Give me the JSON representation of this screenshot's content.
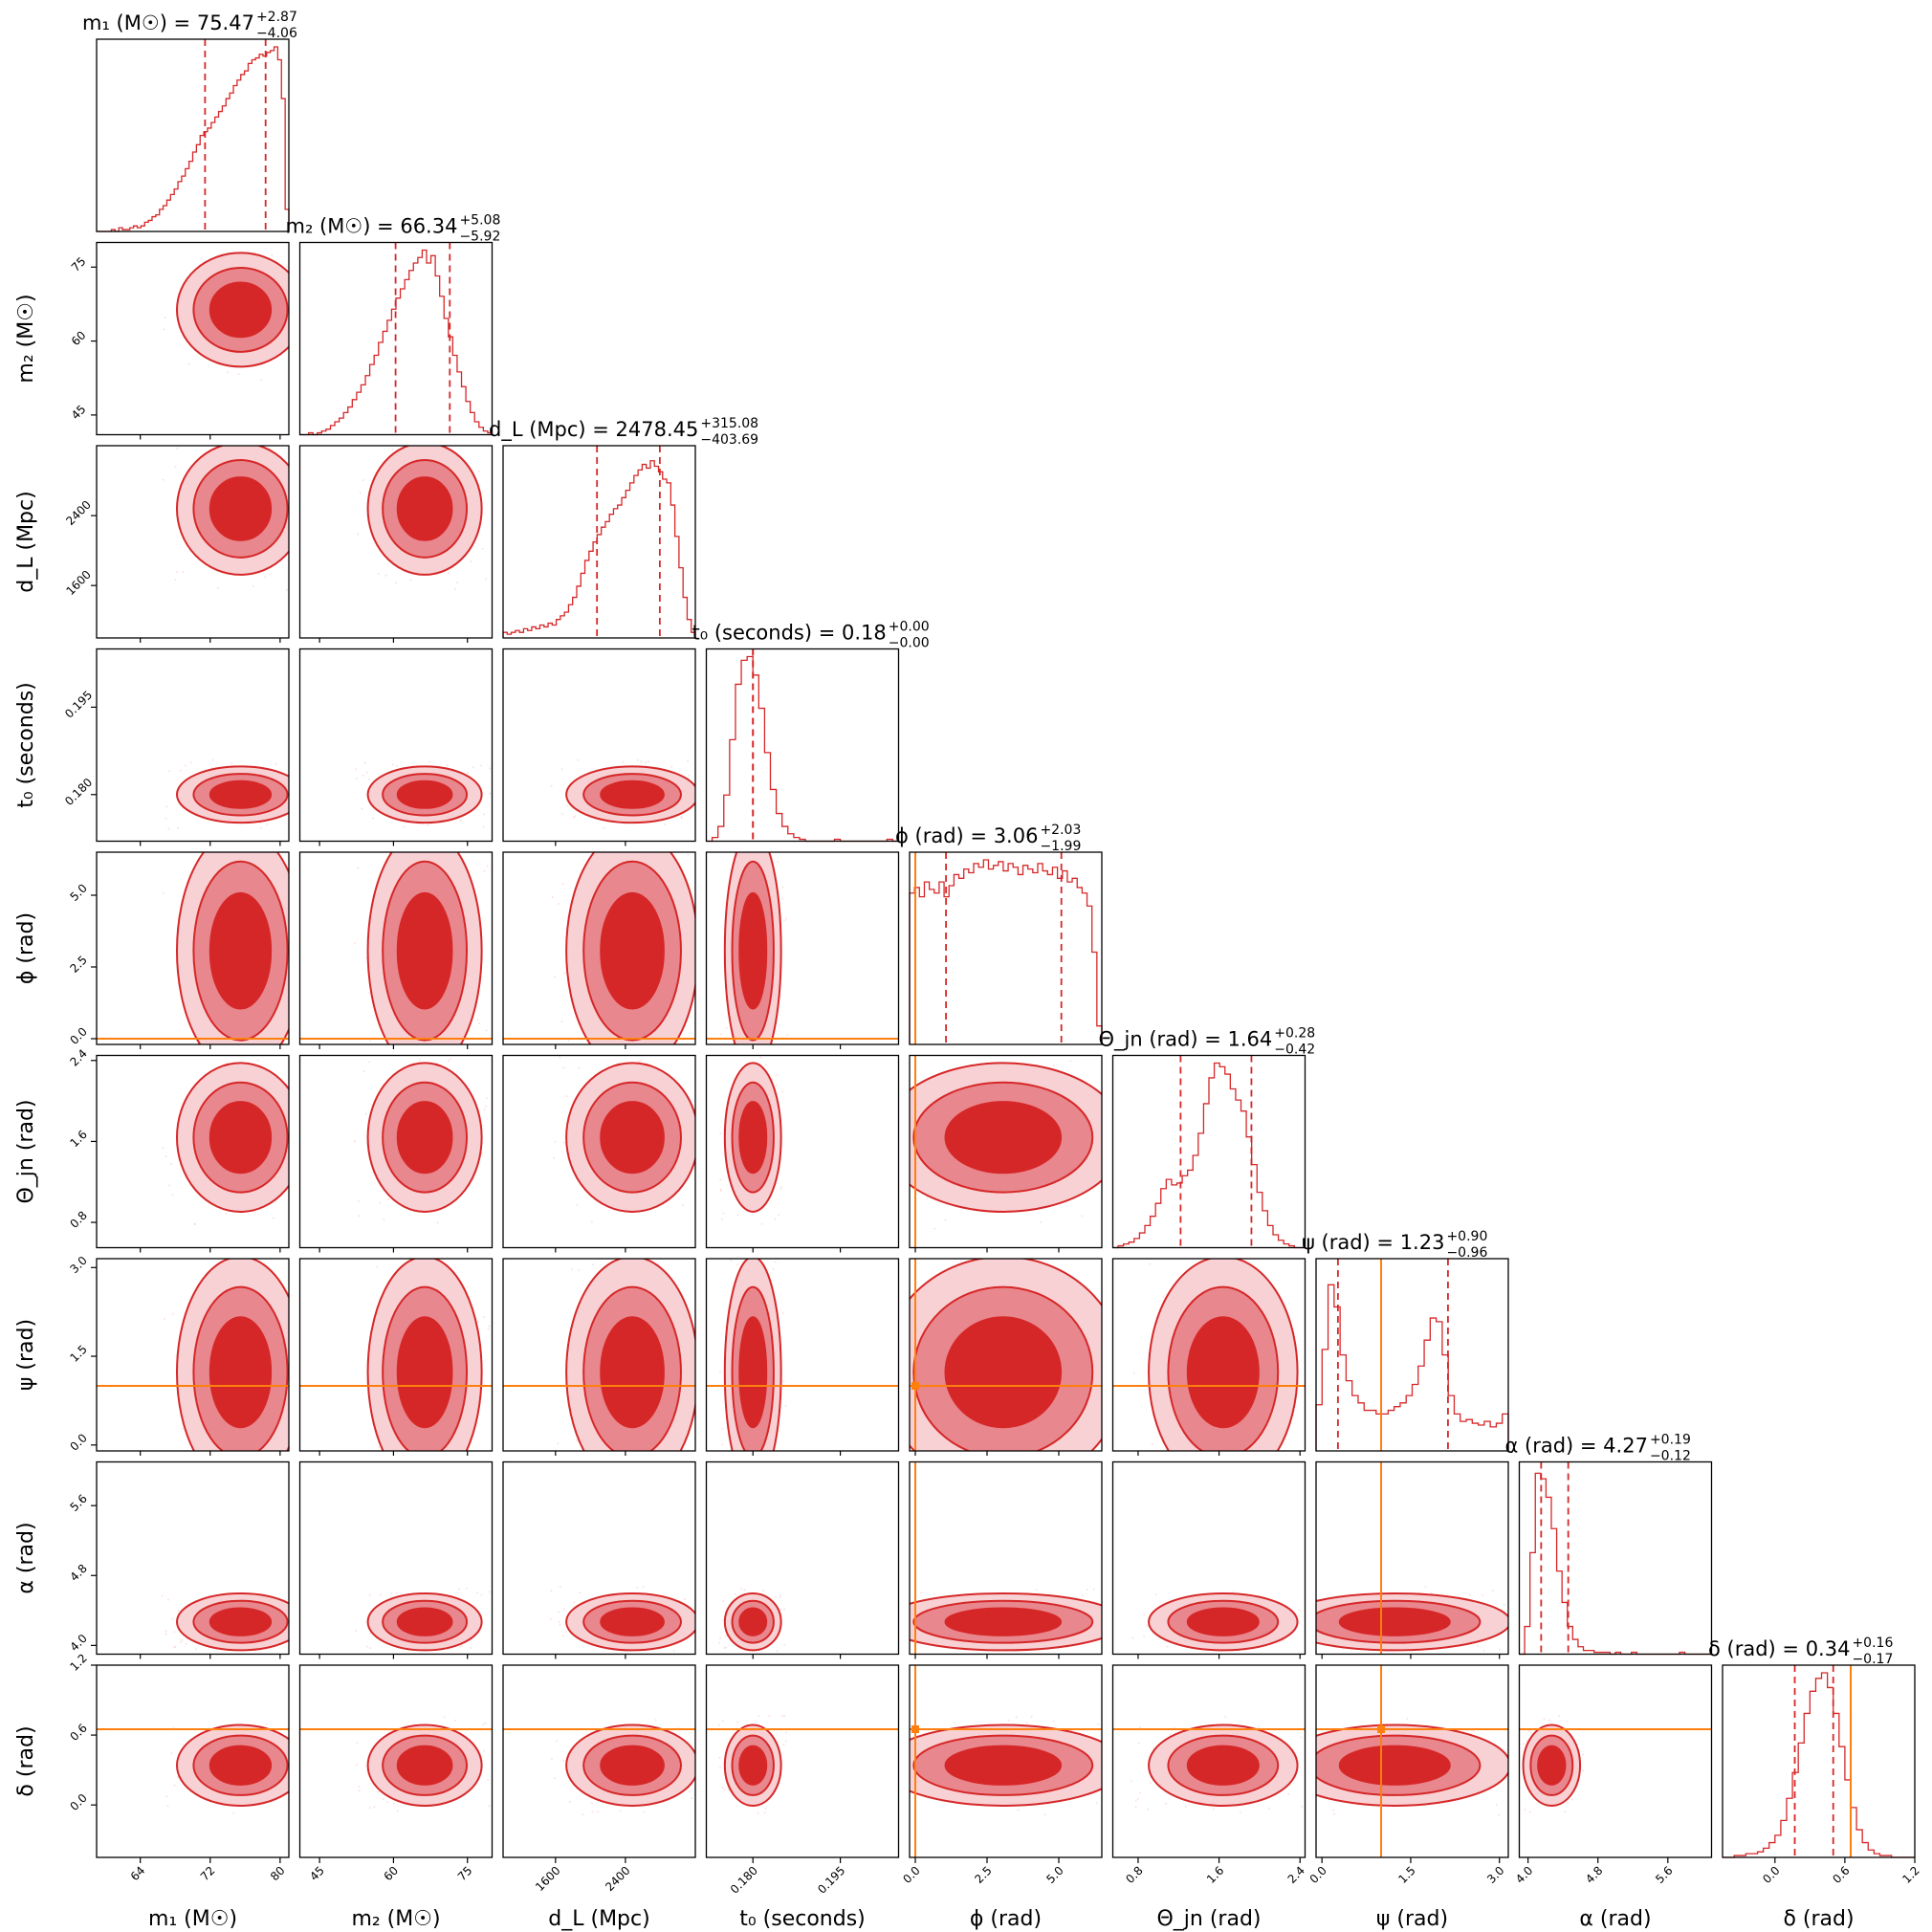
{
  "figure": {
    "type": "corner_plot",
    "colors": {
      "posterior": "#d62728",
      "contour_outer": "#f8d1d4",
      "contour_mid": "#e8878d",
      "contour_inner": "#d62728",
      "truth": "#ff7f0e",
      "scatter": "#f2aab0"
    }
  },
  "chart_data": {
    "type": "corner",
    "parameters": [
      {
        "id": "m1",
        "axis_label": "m₁ (M☉)",
        "title": {
          "lhs": "m₁ (M☉) = 75.47",
          "sup": "+2.87",
          "sub": "−4.06"
        },
        "median": 75.47,
        "err_plus": 2.87,
        "err_minus": 4.06,
        "range": [
          59,
          81
        ],
        "ticks": [
          64,
          72,
          80
        ],
        "tick_labels": [
          "64",
          "72",
          "80"
        ],
        "truth": null,
        "hist": [
          0.0,
          0.0,
          0.0,
          0.0,
          0.01,
          0.0,
          0.02,
          0.01,
          0.01,
          0.02,
          0.03,
          0.02,
          0.03,
          0.05,
          0.06,
          0.08,
          0.09,
          0.12,
          0.14,
          0.17,
          0.2,
          0.23,
          0.27,
          0.3,
          0.34,
          0.38,
          0.43,
          0.47,
          0.52,
          0.54,
          0.56,
          0.59,
          0.62,
          0.65,
          0.68,
          0.72,
          0.75,
          0.79,
          0.82,
          0.85,
          0.87,
          0.91,
          0.93,
          0.94,
          0.96,
          0.95,
          0.97,
          0.98,
          1.0,
          0.93,
          0.72,
          0.12
        ]
      },
      {
        "id": "m2",
        "axis_label": "m₂ (M☉)",
        "title": {
          "lhs": "m₂ (M☉) = 66.34",
          "sup": "+5.08",
          "sub": "−5.92"
        },
        "median": 66.34,
        "err_plus": 5.08,
        "err_minus": 5.92,
        "range": [
          41,
          80
        ],
        "ticks": [
          45,
          60,
          75
        ],
        "tick_labels": [
          "45",
          "60",
          "75"
        ],
        "truth": null,
        "hist": [
          0.0,
          0.0,
          0.01,
          0.0,
          0.01,
          0.02,
          0.03,
          0.05,
          0.07,
          0.09,
          0.12,
          0.15,
          0.19,
          0.23,
          0.27,
          0.32,
          0.38,
          0.43,
          0.5,
          0.56,
          0.62,
          0.68,
          0.74,
          0.79,
          0.84,
          0.89,
          0.93,
          0.96,
          1.0,
          0.93,
          0.97,
          0.86,
          0.75,
          0.63,
          0.53,
          0.43,
          0.34,
          0.26,
          0.18,
          0.12,
          0.07,
          0.04,
          0.02,
          0.01
        ]
      },
      {
        "id": "dL",
        "axis_label": "d_L (Mpc)",
        "title": {
          "lhs": "d_L (Mpc) = 2478.45",
          "sup": "+315.08",
          "sub": "−403.69"
        },
        "median": 2478.45,
        "err_plus": 315.08,
        "err_minus": 403.69,
        "range": [
          1000,
          3200
        ],
        "ticks": [
          1600,
          2400
        ],
        "tick_labels": [
          "1600",
          "2400"
        ],
        "truth": null,
        "hist": [
          0.03,
          0.02,
          0.03,
          0.04,
          0.03,
          0.05,
          0.04,
          0.06,
          0.05,
          0.07,
          0.06,
          0.08,
          0.07,
          0.1,
          0.12,
          0.14,
          0.18,
          0.22,
          0.28,
          0.35,
          0.42,
          0.47,
          0.52,
          0.56,
          0.6,
          0.63,
          0.67,
          0.7,
          0.72,
          0.76,
          0.8,
          0.84,
          0.88,
          0.91,
          0.94,
          0.92,
          0.96,
          0.93,
          0.9,
          0.86,
          0.84,
          0.72,
          0.55,
          0.38,
          0.22,
          0.1,
          0.03
        ]
      },
      {
        "id": "t0",
        "axis_label": "t₀ (seconds)",
        "title": {
          "lhs": "t₀ (seconds) = 0.18",
          "sup": "+0.00",
          "sub": "−0.00"
        },
        "median": 0.18,
        "err_plus": 0.0,
        "err_minus": 0.0,
        "range": [
          0.172,
          0.205
        ],
        "ticks": [
          0.18,
          0.195
        ],
        "tick_labels": [
          "0.180",
          "0.195"
        ],
        "truth": null,
        "hist": [
          0.0,
          0.02,
          0.08,
          0.25,
          0.55,
          0.85,
          0.98,
          1.0,
          0.9,
          0.72,
          0.48,
          0.28,
          0.15,
          0.08,
          0.04,
          0.02,
          0.01,
          0.0,
          0.0,
          0.0,
          0.0,
          0.0,
          0.01,
          0.0,
          0.0,
          0.0,
          0.0,
          0.0,
          0.0,
          0.0,
          0.0,
          0.01,
          0.0
        ]
      },
      {
        "id": "phi",
        "axis_label": "ϕ (rad)",
        "title": {
          "lhs": "ϕ (rad) = 3.06",
          "sup": "+2.03",
          "sub": "−1.99"
        },
        "median": 3.06,
        "err_plus": 2.03,
        "err_minus": 1.99,
        "range": [
          -0.2,
          6.5
        ],
        "ticks": [
          0.0,
          2.5,
          5.0
        ],
        "tick_labels": [
          "0.0",
          "2.5",
          "5.0"
        ],
        "truth": 0.0,
        "hist": [
          0.82,
          0.85,
          0.8,
          0.88,
          0.84,
          0.82,
          0.88,
          0.8,
          0.86,
          0.92,
          0.9,
          0.95,
          0.93,
          0.98,
          0.96,
          1.0,
          0.95,
          0.97,
          0.99,
          0.94,
          0.98,
          0.96,
          0.92,
          0.97,
          0.95,
          0.93,
          0.98,
          0.94,
          0.92,
          0.96,
          0.9,
          0.94,
          0.88,
          0.9,
          0.85,
          0.82,
          0.75,
          0.5,
          0.1
        ]
      },
      {
        "id": "theta_jn",
        "axis_label": "Θ_jn (rad)",
        "title": {
          "lhs": "Θ_jn (rad) = 1.64",
          "sup": "+0.28",
          "sub": "−0.42"
        },
        "median": 1.64,
        "err_plus": 0.28,
        "err_minus": 0.42,
        "range": [
          0.55,
          2.45
        ],
        "ticks": [
          0.8,
          1.6,
          2.4
        ],
        "tick_labels": [
          "0.8",
          "1.6",
          "2.4"
        ],
        "truth": null,
        "hist": [
          0.0,
          0.01,
          0.02,
          0.03,
          0.05,
          0.08,
          0.12,
          0.17,
          0.24,
          0.32,
          0.37,
          0.34,
          0.35,
          0.39,
          0.42,
          0.5,
          0.62,
          0.78,
          0.92,
          1.0,
          0.98,
          0.94,
          0.86,
          0.8,
          0.74,
          0.6,
          0.45,
          0.3,
          0.2,
          0.12,
          0.07,
          0.04,
          0.02,
          0.01,
          0.0,
          0.0
        ]
      },
      {
        "id": "psi",
        "axis_label": "ψ (rad)",
        "title": {
          "lhs": "ψ (rad) = 1.23",
          "sup": "+0.90",
          "sub": "−0.96"
        },
        "median": 1.23,
        "err_plus": 0.9,
        "err_minus": 0.96,
        "range": [
          -0.1,
          3.15
        ],
        "ticks": [
          0.0,
          1.5,
          3.0
        ],
        "tick_labels": [
          "0.0",
          "1.5",
          "3.0"
        ],
        "truth": 1.0,
        "hist": [
          0.25,
          0.55,
          0.9,
          0.78,
          0.52,
          0.38,
          0.3,
          0.26,
          0.22,
          0.22,
          0.2,
          0.2,
          0.22,
          0.24,
          0.26,
          0.3,
          0.36,
          0.46,
          0.6,
          0.72,
          0.7,
          0.52,
          0.3,
          0.2,
          0.16,
          0.17,
          0.15,
          0.14,
          0.16,
          0.13,
          0.15,
          0.2
        ]
      },
      {
        "id": "alpha",
        "axis_label": "α (rad)",
        "title": {
          "lhs": "α (rad) = 4.27",
          "sup": "+0.19",
          "sub": "−0.12"
        },
        "median": 4.27,
        "err_plus": 0.19,
        "err_minus": 0.12,
        "range": [
          3.9,
          6.1
        ],
        "ticks": [
          4.0,
          4.8,
          5.6
        ],
        "tick_labels": [
          "4.0",
          "4.8",
          "5.6"
        ],
        "truth": null,
        "hist": [
          0.0,
          0.15,
          0.55,
          0.98,
          0.95,
          0.85,
          0.68,
          0.45,
          0.28,
          0.15,
          0.08,
          0.04,
          0.02,
          0.02,
          0.01,
          0.01,
          0.01,
          0.0,
          0.01,
          0.0,
          0.0,
          0.01,
          0.0,
          0.0,
          0.0,
          0.0,
          0.0,
          0.0,
          0.0,
          0.0,
          0.01,
          0.0,
          0.0,
          0.0,
          0.0,
          0.0
        ]
      },
      {
        "id": "delta",
        "axis_label": "δ (rad)",
        "title": {
          "lhs": "δ (rad) = 0.34",
          "sup": "+0.16",
          "sub": "−0.17"
        },
        "median": 0.34,
        "err_plus": 0.16,
        "err_minus": 0.17,
        "range": [
          -0.45,
          1.2
        ],
        "ticks": [
          0.0,
          0.6,
          1.2
        ],
        "tick_labels": [
          "0.0",
          "0.6",
          "1.2"
        ],
        "truth": 0.65,
        "hist": [
          0.0,
          0.0,
          0.01,
          0.01,
          0.02,
          0.02,
          0.03,
          0.05,
          0.08,
          0.12,
          0.2,
          0.32,
          0.46,
          0.62,
          0.78,
          0.9,
          0.97,
          1.0,
          0.92,
          0.78,
          0.6,
          0.42,
          0.27,
          0.15,
          0.08,
          0.04,
          0.02,
          0.01,
          0.01,
          0.0,
          0.0,
          0.0,
          0.0
        ]
      }
    ]
  }
}
